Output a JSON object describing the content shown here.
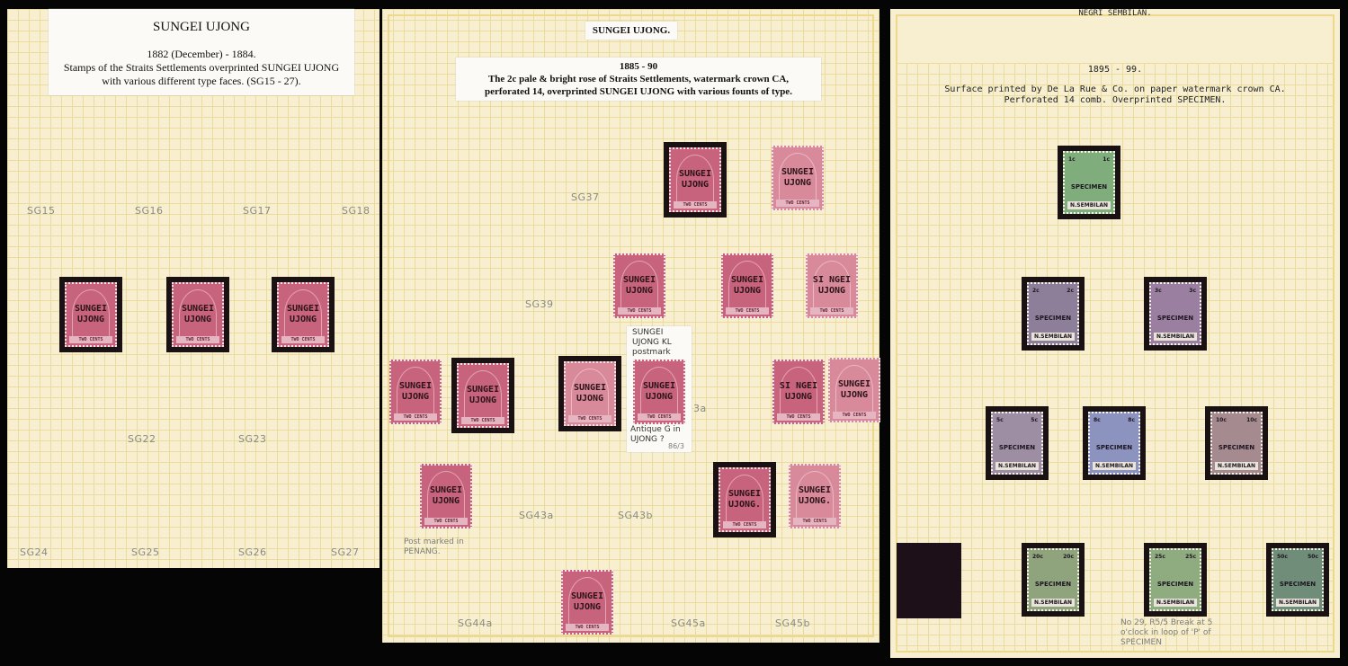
{
  "left_page": {
    "title": "SUNGEI UJONG",
    "period": "1882 (December) - 1884.",
    "description_line1": "Stamps of the Straits Settlements overprinted  SUNGEI UJONG",
    "description_line2": "with various different type faces.  (SG15 - 27).",
    "labels": [
      "SG15",
      "SG16",
      "SG17",
      "SG18",
      "SG22",
      "SG23",
      "SG24",
      "SG25",
      "SG26",
      "SG27"
    ],
    "stamps": [
      {
        "overprint": "SUNGEI UJONG",
        "value": "TWO CENTS"
      },
      {
        "overprint": "SUNGEI UJONG",
        "value": "TWO CENTS"
      },
      {
        "overprint": "SUNGEI UJONG",
        "value": "TWO CENTS"
      }
    ]
  },
  "middle_page": {
    "title": "SUNGEI UJONG.",
    "period": "1885 - 90",
    "description_line1": "The 2c pale & bright rose of Straits Settlements, watermark crown CA,",
    "description_line2": "perforated 14, overprinted SUNGEI UJONG with various founts of type.",
    "labels": [
      "SG37",
      "SG39",
      "3a",
      "SG43a",
      "SG43b",
      "SG44a",
      "SG45a",
      "SG45b"
    ],
    "note_card": {
      "top": "SUNGEI UJONG KL postmark",
      "bottom": "Antique G in UJONG ?",
      "ref": "86/3"
    },
    "penang_note": "Post marked in PENANG.",
    "stamps": [
      {
        "overprint": "SUNGEI UJONG",
        "value": "TWO CENTS"
      },
      {
        "overprint": "SUNGEI UJONG",
        "value": "TWO CENTS"
      },
      {
        "overprint": "SUNGEI UJONG",
        "value": "TWO CENTS"
      },
      {
        "overprint": "SUNGEI UJONG",
        "value": "TWO CENTS"
      },
      {
        "overprint": "SI NGEI UJONG",
        "value": "TWO CENTS"
      },
      {
        "overprint": "SUNGEI UJONG",
        "value": "TWO CENTS"
      },
      {
        "overprint": "SUNGEI UJONG",
        "value": "TWO CENTS"
      },
      {
        "overprint": "SUNGEI UJONG",
        "value": "TWO CENTS"
      },
      {
        "overprint": "SUNGEI UJONG",
        "value": "TWO CENTS"
      },
      {
        "overprint": "SI NGEI UJONG",
        "value": "TWO CENTS"
      },
      {
        "overprint": "SUNGEI UJONG",
        "value": "TWO CENTS"
      },
      {
        "overprint": "SUNGEI UJONG",
        "value": "TWO CENTS"
      },
      {
        "overprint": "SUNGEI UJONG.",
        "value": "TWO CENTS"
      },
      {
        "overprint": "SUNGEI UJONG.",
        "value": "TWO CENTS"
      },
      {
        "overprint": "SUNGEI UJONG",
        "value": "TWO CENTS"
      }
    ]
  },
  "right_page": {
    "title": "NEGRI SEMBILAN.",
    "period": "1895 - 99.",
    "description_line1": "Surface printed by De La Rue & Co. on paper watermark crown CA.",
    "description_line2": "Perforated 14 comb.  Overprinted SPECIMEN.",
    "note": "No 29, R5/5 Break at 5 o'clock in loop of 'P' of SPECIMEN",
    "stamps": [
      {
        "value": "1c",
        "overprint": "SPECIMEN",
        "name": "N.SEMBILAN",
        "color": "#7fae7c"
      },
      {
        "value": "2c",
        "overprint": "SPECIMEN",
        "name": "N.SEMBILAN",
        "color": "#8d7f99"
      },
      {
        "value": "3c",
        "overprint": "SPECIMEN",
        "name": "N.SEMBILAN",
        "color": "#9a7fa0"
      },
      {
        "value": "5c",
        "overprint": "SPECIMEN",
        "name": "N.SEMBILAN",
        "color": "#9d8ea4"
      },
      {
        "value": "8c",
        "overprint": "SPECIMEN",
        "name": "N.SEMBILAN",
        "color": "#8c93bf"
      },
      {
        "value": "10c",
        "overprint": "SPECIMEN",
        "name": "N.SEMBILAN",
        "color": "#a58a8f"
      },
      {
        "value": "20c",
        "overprint": "SPECIMEN",
        "name": "N.SEMBILAN",
        "color": "#8fa37d"
      },
      {
        "value": "25c",
        "overprint": "SPECIMEN",
        "name": "N.SEMBILAN",
        "color": "#8fab80"
      },
      {
        "value": "50c",
        "overprint": "SPECIMEN",
        "name": "N.SEMBILAN",
        "color": "#6f8d78"
      }
    ]
  }
}
